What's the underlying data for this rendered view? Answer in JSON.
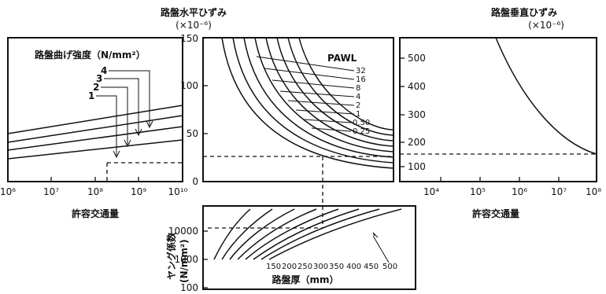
{
  "panels": {
    "left": {
      "legend_title": "路盤曲げ強度（N/mm²）",
      "curve_labels": [
        "4",
        "3",
        "2",
        "1"
      ],
      "x_ticks": [
        "10⁶",
        "10⁷",
        "10⁸",
        "10⁹",
        "10¹⁰"
      ],
      "x_axis_label": "許容交通量"
    },
    "center": {
      "title": "路盤水平ひずみ",
      "unit": "(×10⁻⁶)",
      "y_ticks": [
        "0",
        "50",
        "100",
        "150"
      ],
      "legend_title": "PAWL",
      "curve_labels": [
        "32",
        "16",
        "8",
        "4",
        "2",
        "1",
        "0.50",
        "0.25"
      ]
    },
    "right": {
      "title": "路盤垂直ひずみ",
      "unit": "(×10⁻⁶)",
      "y_ticks": [
        "100",
        "200",
        "300",
        "400",
        "500"
      ],
      "x_ticks": [
        "10⁴",
        "10⁵",
        "10⁶",
        "10⁷",
        "10⁸"
      ],
      "x_axis_label": "許容交通量"
    },
    "bottom": {
      "y_axis_label_1": "ヤング係数",
      "y_axis_label_2": "(N/mm²)",
      "y_ticks": [
        "10000",
        "1000",
        "100"
      ],
      "curve_labels": [
        "150",
        "200",
        "250",
        "300",
        "350",
        "400",
        "450",
        "500"
      ],
      "x_axis_label": "路盤厚（mm）"
    }
  }
}
